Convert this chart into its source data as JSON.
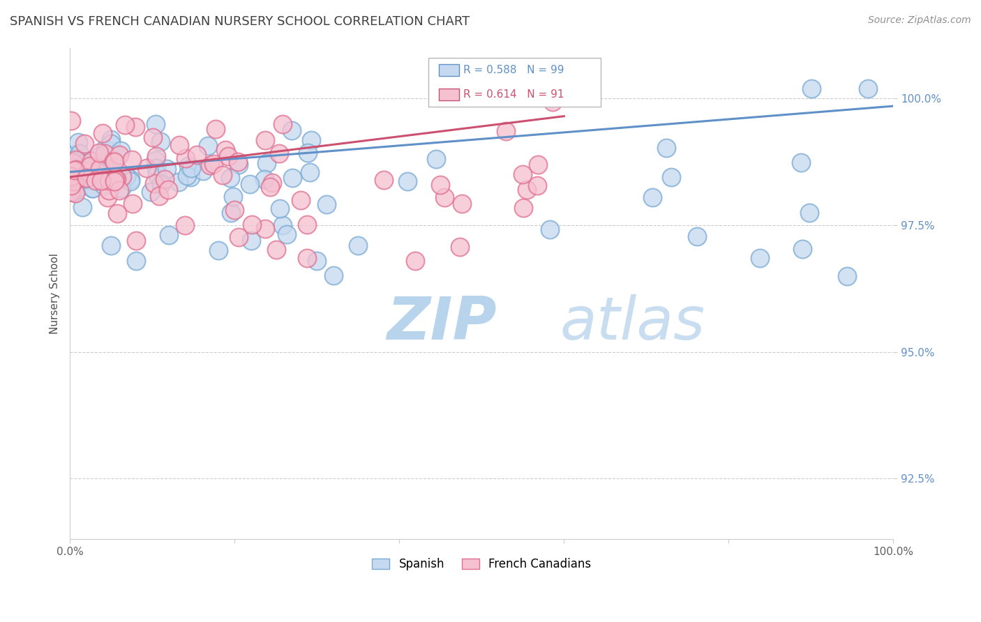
{
  "title": "SPANISH VS FRENCH CANADIAN NURSERY SCHOOL CORRELATION CHART",
  "source_text": "Source: ZipAtlas.com",
  "ylabel": "Nursery School",
  "watermark_zip": "ZIP",
  "watermark_atlas": "atlas",
  "xlim": [
    0.0,
    100.0
  ],
  "ylim": [
    91.3,
    101.0
  ],
  "yticks": [
    92.5,
    95.0,
    97.5,
    100.0
  ],
  "ytick_labels": [
    "92.5%",
    "95.0%",
    "97.5%",
    "100.0%"
  ],
  "xticks": [
    0.0,
    20.0,
    40.0,
    60.0,
    80.0,
    100.0
  ],
  "xtick_labels": [
    "0.0%",
    "",
    "",
    "",
    "",
    "100.0%"
  ],
  "legend_r1": "R = 0.588",
  "legend_n1": "N = 99",
  "legend_r2": "R = 0.614",
  "legend_n2": "N = 91",
  "legend_label1": "Spanish",
  "legend_label2": "French Canadians",
  "color_spanish_fill": "#c5d9f0",
  "color_spanish_edge": "#7aaad4",
  "color_french_fill": "#f5c0d0",
  "color_french_edge": "#e07090",
  "color_line_spanish": "#6090c8",
  "color_line_french": "#cc5070",
  "title_color": "#404040",
  "source_color": "#909090",
  "watermark_color_zip": "#b8d4ec",
  "watermark_color_atlas": "#c8ddf0",
  "background_color": "#ffffff",
  "trend_sp_x0": 0.0,
  "trend_sp_y0": 98.55,
  "trend_sp_x1": 100.0,
  "trend_sp_y1": 99.85,
  "trend_fr_x0": 0.0,
  "trend_fr_y0": 98.45,
  "trend_fr_x1": 60.0,
  "trend_fr_y1": 99.65
}
